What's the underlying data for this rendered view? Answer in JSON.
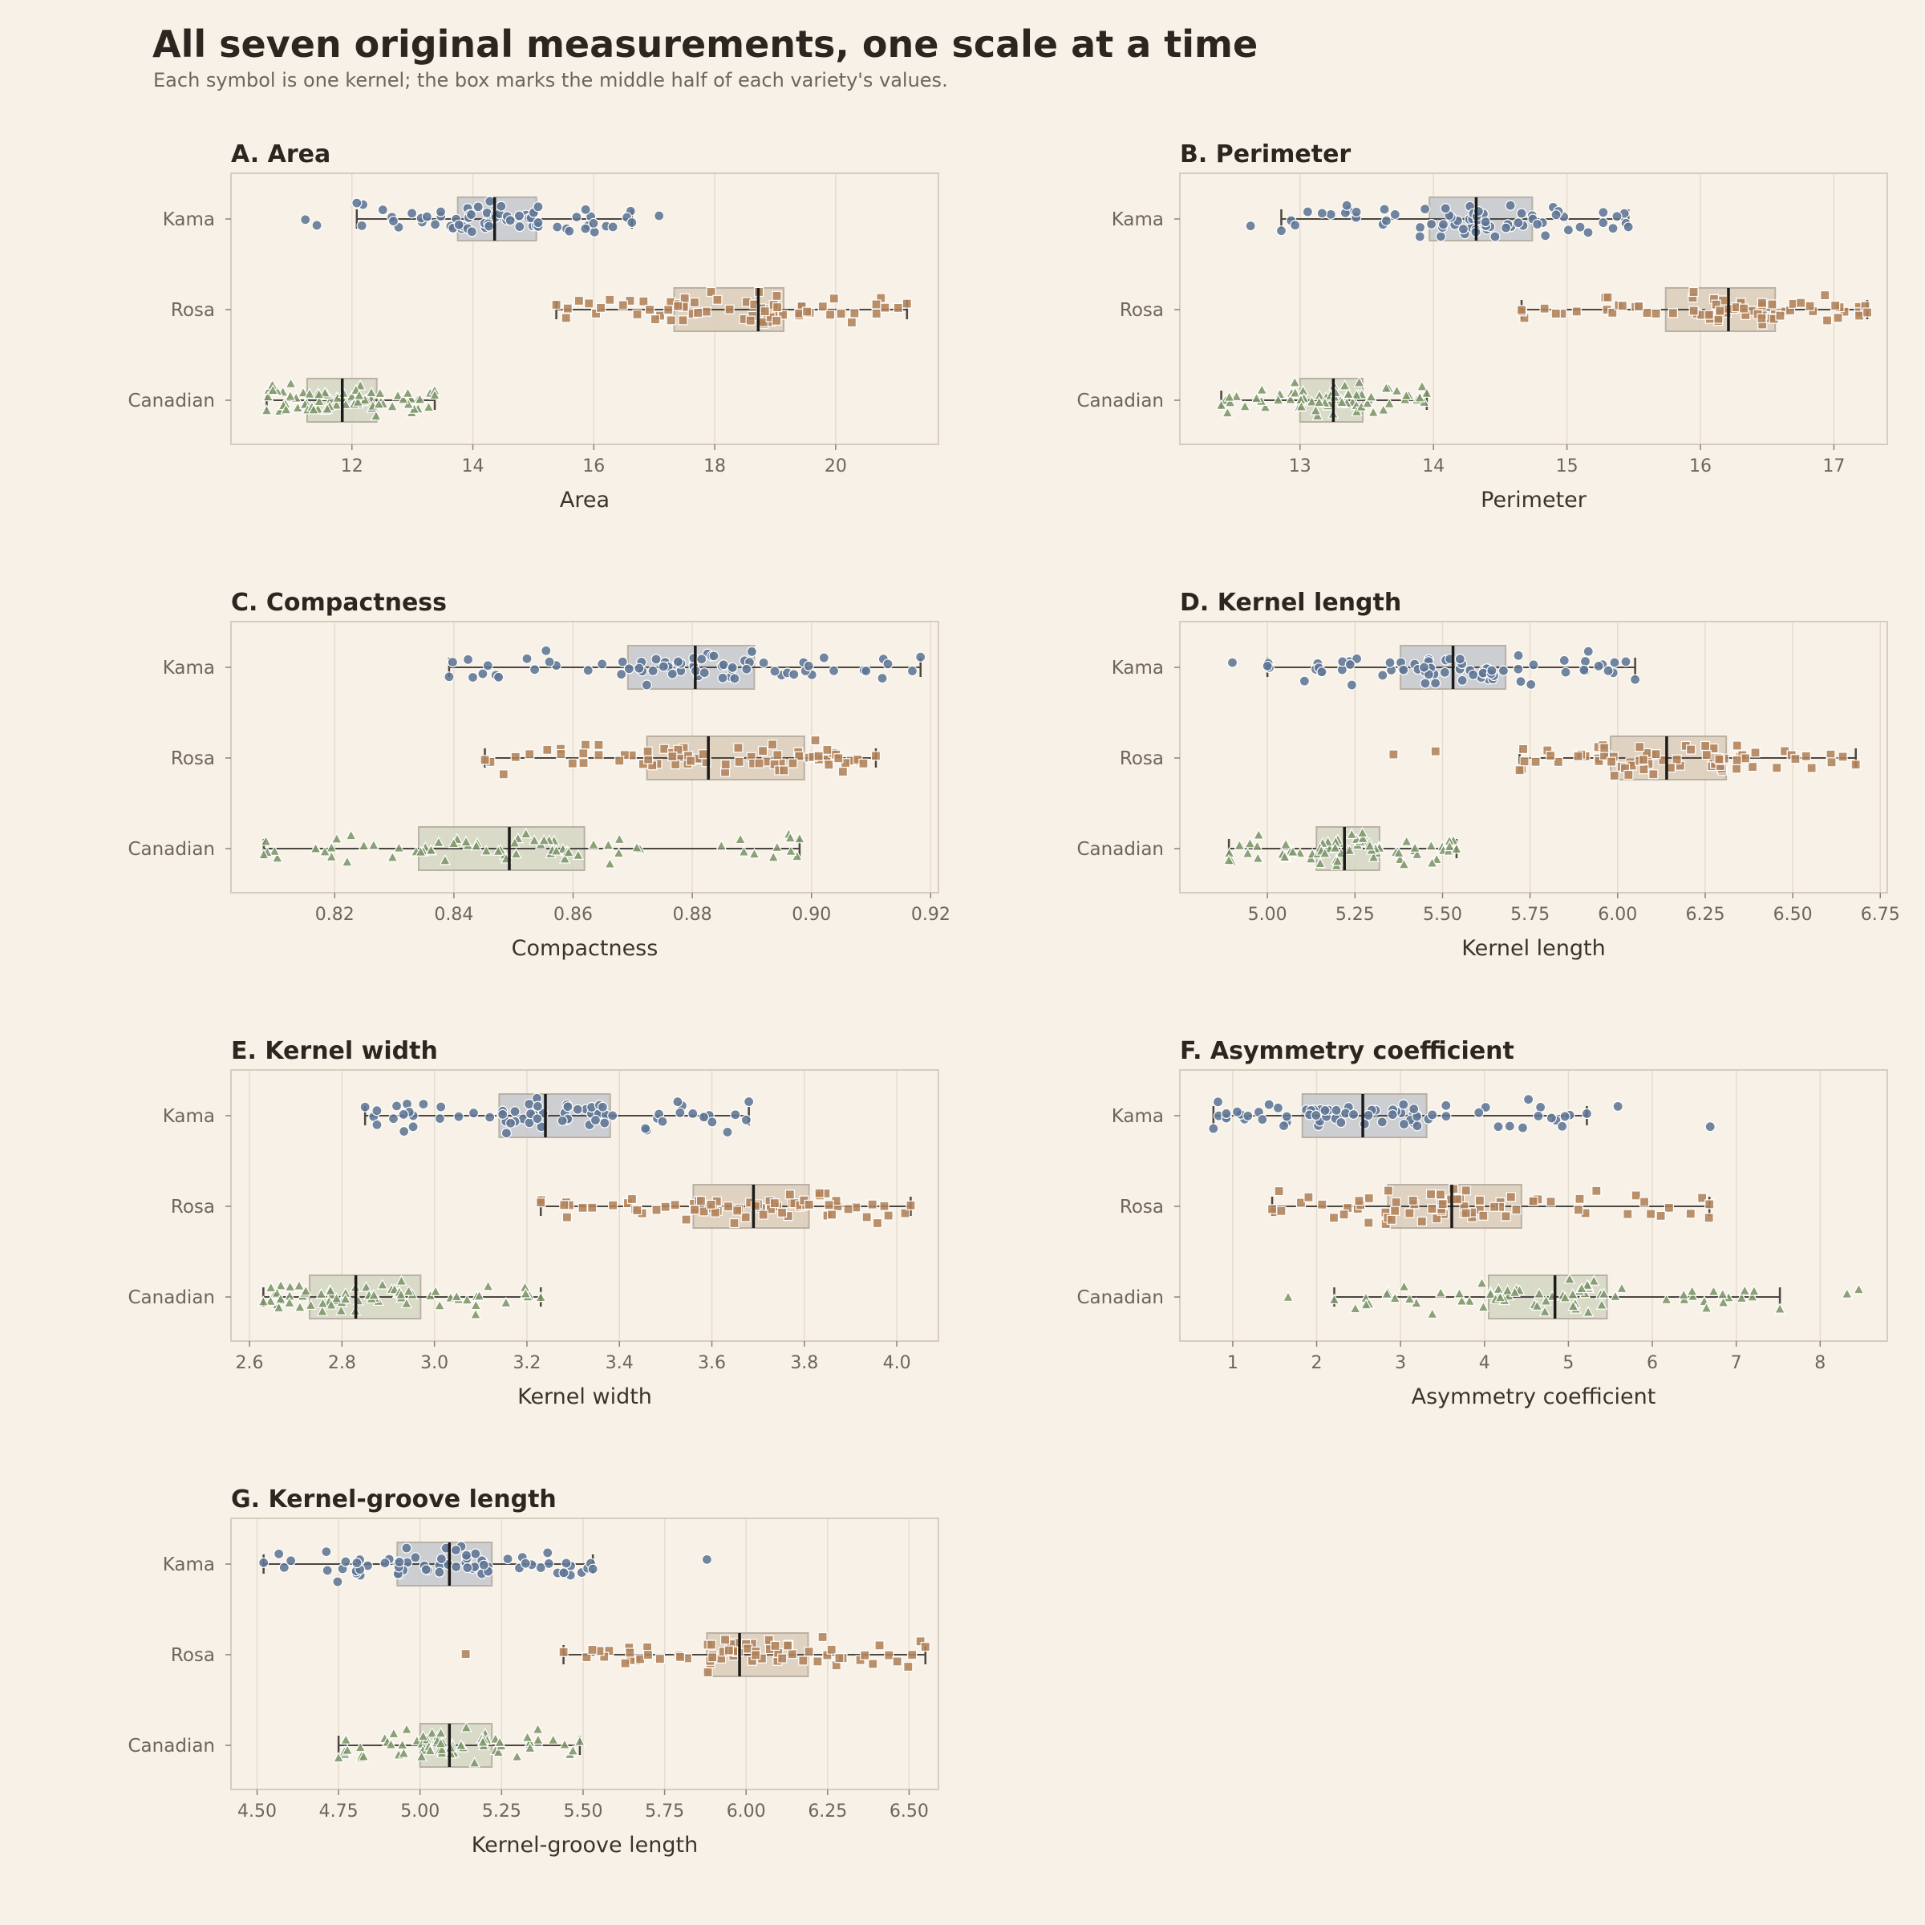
{
  "title": "All seven original measurements, one scale at a time",
  "subtitle": "Each symbol is one kernel; the box marks the middle half of each variety's values.",
  "colors": {
    "background": "#f8f1e7",
    "Kama": "#5e7594",
    "Rosa": "#b0825a",
    "Canadian": "#7d9568",
    "Kama_box": "#c4c8cc",
    "Rosa_box": "#dcccb8",
    "Canadian_box": "#d3d6c2",
    "frame": "#d6cdbf",
    "grid": "#e6dccd",
    "whisker": "#4a4640",
    "median": "#1c1a18"
  },
  "varieties": [
    "Kama",
    "Rosa",
    "Canadian"
  ],
  "markers": {
    "Kama": "circle",
    "Rosa": "square",
    "Canadian": "triangle"
  },
  "chart_data": [
    {
      "type": "box-strip",
      "title": "A. Area",
      "xlabel": "Area",
      "xlim": [
        10.0,
        21.7
      ],
      "ticks": [
        12,
        14,
        16,
        18,
        20
      ],
      "tick_labels": [
        "12",
        "14",
        "16",
        "18",
        "20"
      ],
      "grid": true,
      "series": [
        {
          "name": "Kama",
          "q1": 13.75,
          "median": 14.36,
          "q3": 15.05,
          "whisker_low": 12.08,
          "whisker_high": 16.63,
          "outliers": [
            11.23,
            11.42,
            17.08
          ]
        },
        {
          "name": "Rosa",
          "q1": 17.33,
          "median": 18.72,
          "q3": 19.14,
          "whisker_low": 15.38,
          "whisker_high": 21.18,
          "outliers": []
        },
        {
          "name": "Canadian",
          "q1": 11.26,
          "median": 11.84,
          "q3": 12.41,
          "whisker_low": 10.59,
          "whisker_high": 13.37,
          "outliers": []
        }
      ]
    },
    {
      "type": "box-strip",
      "title": "B. Perimeter",
      "xlabel": "Perimeter",
      "xlim": [
        12.1,
        17.4
      ],
      "ticks": [
        13,
        14,
        15,
        16,
        17
      ],
      "tick_labels": [
        "13",
        "14",
        "15",
        "16",
        "17"
      ],
      "grid": true,
      "series": [
        {
          "name": "Kama",
          "q1": 13.97,
          "median": 14.32,
          "q3": 14.74,
          "whisker_low": 12.86,
          "whisker_high": 15.46,
          "outliers": [
            12.63
          ]
        },
        {
          "name": "Rosa",
          "q1": 15.74,
          "median": 16.21,
          "q3": 16.56,
          "whisker_low": 14.66,
          "whisker_high": 17.25,
          "outliers": []
        },
        {
          "name": "Canadian",
          "q1": 13.0,
          "median": 13.25,
          "q3": 13.47,
          "whisker_low": 12.41,
          "whisker_high": 13.95,
          "outliers": []
        }
      ]
    },
    {
      "type": "box-strip",
      "title": "C. Compactness",
      "xlabel": "Compactness",
      "xlim": [
        0.8026,
        0.9213
      ],
      "ticks": [
        0.82,
        0.84,
        0.86,
        0.88,
        0.9,
        0.92
      ],
      "tick_labels": [
        "0.82",
        "0.84",
        "0.86",
        "0.88",
        "0.90",
        "0.92"
      ],
      "grid": true,
      "series": [
        {
          "name": "Kama",
          "q1": 0.8692,
          "median": 0.8805,
          "q3": 0.8904,
          "whisker_low": 0.8392,
          "whisker_high": 0.9183,
          "outliers": []
        },
        {
          "name": "Rosa",
          "q1": 0.8724,
          "median": 0.8827,
          "q3": 0.8988,
          "whisker_low": 0.8452,
          "whisker_high": 0.9108,
          "outliers": []
        },
        {
          "name": "Canadian",
          "q1": 0.8341,
          "median": 0.8493,
          "q3": 0.8619,
          "whisker_low": 0.8081,
          "whisker_high": 0.898,
          "outliers": []
        }
      ]
    },
    {
      "type": "box-strip",
      "title": "D. Kernel length",
      "xlabel": "Kernel length",
      "xlim": [
        4.75,
        6.77
      ],
      "ticks": [
        5.0,
        5.25,
        5.5,
        5.75,
        6.0,
        6.25,
        6.5,
        6.75
      ],
      "tick_labels": [
        "5.00",
        "5.25",
        "5.50",
        "5.75",
        "6.00",
        "6.25",
        "6.50",
        "6.75"
      ],
      "grid": true,
      "series": [
        {
          "name": "Kama",
          "q1": 5.38,
          "median": 5.53,
          "q3": 5.68,
          "whisker_low": 5.0,
          "whisker_high": 6.05,
          "outliers": [
            4.9
          ]
        },
        {
          "name": "Rosa",
          "q1": 5.98,
          "median": 6.14,
          "q3": 6.31,
          "whisker_low": 5.72,
          "whisker_high": 6.68,
          "outliers": [
            5.36,
            5.48
          ]
        },
        {
          "name": "Canadian",
          "q1": 5.14,
          "median": 5.22,
          "q3": 5.32,
          "whisker_low": 4.89,
          "whisker_high": 5.54,
          "outliers": []
        }
      ]
    },
    {
      "type": "box-strip",
      "title": "E. Kernel width",
      "xlabel": "Kernel width",
      "xlim": [
        2.56,
        4.09
      ],
      "ticks": [
        2.6,
        2.8,
        3.0,
        3.2,
        3.4,
        3.6,
        3.8,
        4.0
      ],
      "tick_labels": [
        "2.6",
        "2.8",
        "3.0",
        "3.2",
        "3.4",
        "3.6",
        "3.8",
        "4.0"
      ],
      "grid": true,
      "series": [
        {
          "name": "Kama",
          "q1": 3.14,
          "median": 3.24,
          "q3": 3.38,
          "whisker_low": 2.85,
          "whisker_high": 3.68,
          "outliers": []
        },
        {
          "name": "Rosa",
          "q1": 3.56,
          "median": 3.69,
          "q3": 3.81,
          "whisker_low": 3.23,
          "whisker_high": 4.03,
          "outliers": []
        },
        {
          "name": "Canadian",
          "q1": 2.73,
          "median": 2.83,
          "q3": 2.97,
          "whisker_low": 2.63,
          "whisker_high": 3.23,
          "outliers": []
        }
      ]
    },
    {
      "type": "box-strip",
      "title": "F. Asymmetry coefficient",
      "xlabel": "Asymmetry coefficient",
      "xlim": [
        0.37,
        8.8
      ],
      "ticks": [
        1,
        2,
        3,
        4,
        5,
        6,
        7,
        8
      ],
      "tick_labels": [
        "1",
        "2",
        "3",
        "4",
        "5",
        "6",
        "7",
        "8"
      ],
      "grid": true,
      "series": [
        {
          "name": "Kama",
          "q1": 1.83,
          "median": 2.55,
          "q3": 3.31,
          "whisker_low": 0.77,
          "whisker_high": 5.22,
          "outliers": [
            5.59,
            6.69
          ]
        },
        {
          "name": "Rosa",
          "q1": 2.85,
          "median": 3.61,
          "q3": 4.44,
          "whisker_low": 1.47,
          "whisker_high": 6.68,
          "outliers": []
        },
        {
          "name": "Canadian",
          "q1": 4.05,
          "median": 4.84,
          "q3": 5.46,
          "whisker_low": 2.21,
          "whisker_high": 7.52,
          "outliers": [
            1.66,
            8.32,
            8.46
          ]
        }
      ]
    },
    {
      "type": "box-strip",
      "title": "G. Kernel-groove length",
      "xlabel": "Kernel-groove length",
      "xlim": [
        4.42,
        6.59
      ],
      "ticks": [
        4.5,
        4.75,
        5.0,
        5.25,
        5.5,
        5.75,
        6.0,
        6.25,
        6.5
      ],
      "tick_labels": [
        "4.50",
        "4.75",
        "5.00",
        "5.25",
        "5.50",
        "5.75",
        "6.00",
        "6.25",
        "6.50"
      ],
      "grid": true,
      "series": [
        {
          "name": "Kama",
          "q1": 4.93,
          "median": 5.09,
          "q3": 5.22,
          "whisker_low": 4.52,
          "whisker_high": 5.53,
          "outliers": [
            5.88
          ]
        },
        {
          "name": "Rosa",
          "q1": 5.88,
          "median": 5.98,
          "q3": 6.19,
          "whisker_low": 5.44,
          "whisker_high": 6.55,
          "outliers": [
            5.14
          ]
        },
        {
          "name": "Canadian",
          "q1": 5.0,
          "median": 5.09,
          "q3": 5.22,
          "whisker_low": 4.75,
          "whisker_high": 5.49,
          "outliers": []
        }
      ]
    }
  ]
}
